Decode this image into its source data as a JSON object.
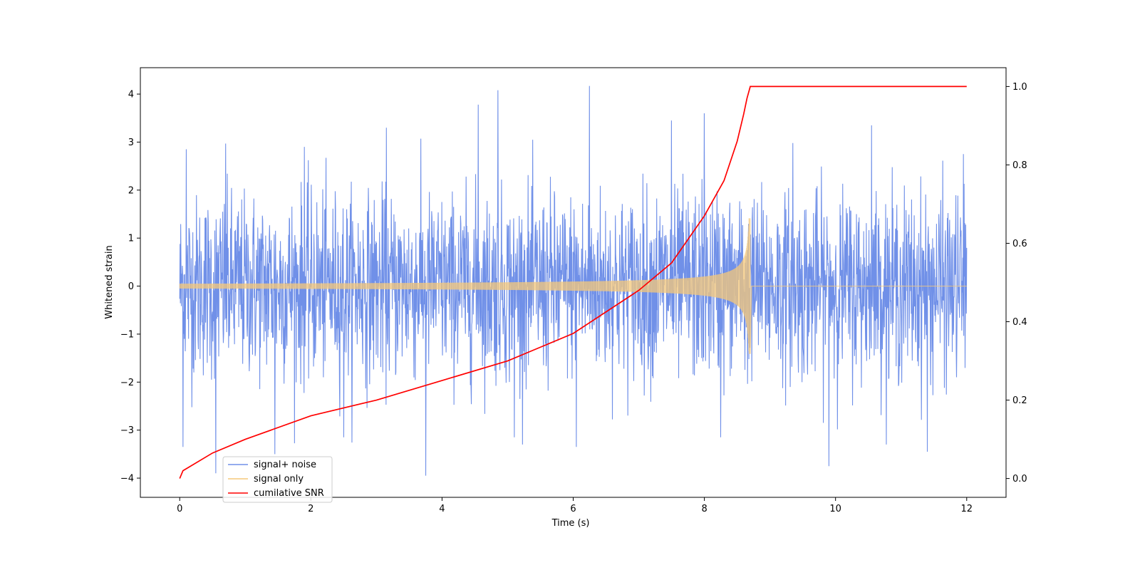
{
  "chart_data": {
    "type": "line",
    "xlabel": "Time (s)",
    "ylabel": "Whitened strain",
    "xlim": [
      -0.6,
      12.6
    ],
    "ylim": [
      -4.4,
      4.55
    ],
    "y2lim": [
      -0.048,
      1.048
    ],
    "xticks": [
      0,
      2,
      4,
      6,
      8,
      10,
      12
    ],
    "yticks": [
      -4,
      -3,
      -2,
      -1,
      0,
      1,
      2,
      3,
      4
    ],
    "y2ticks": [
      0.0,
      0.2,
      0.4,
      0.6,
      0.8,
      1.0
    ],
    "y2tick_labels": [
      "0.0",
      "0.2",
      "0.4",
      "0.6",
      "0.8",
      "1.0"
    ],
    "ytick_labels": [
      "−4",
      "−3",
      "−2",
      "−1",
      "0",
      "1",
      "2",
      "3",
      "4"
    ],
    "legend": {
      "placement": "lower-left"
    },
    "series": [
      {
        "name": "signal+ noise",
        "color": "#7090e8",
        "axis": "left",
        "t_range": [
          0,
          12
        ],
        "envelope_peaks_max": [
          [
            0.1,
            2.85
          ],
          [
            0.7,
            2.97
          ],
          [
            1.9,
            2.9
          ],
          [
            3.15,
            3.3
          ],
          [
            4.55,
            3.78
          ],
          [
            4.85,
            4.08
          ],
          [
            6.25,
            4.17
          ],
          [
            7.5,
            3.45
          ],
          [
            8.0,
            3.6
          ],
          [
            9.35,
            2.98
          ],
          [
            10.55,
            3.35
          ],
          [
            11.95,
            2.75
          ]
        ],
        "envelope_peaks_min": [
          [
            0.05,
            -3.35
          ],
          [
            0.55,
            -3.9
          ],
          [
            1.45,
            -3.5
          ],
          [
            2.5,
            -3.15
          ],
          [
            3.75,
            -3.95
          ],
          [
            5.1,
            -3.15
          ],
          [
            6.05,
            -3.35
          ],
          [
            8.25,
            -3.15
          ],
          [
            9.9,
            -3.75
          ],
          [
            11.4,
            -3.45
          ]
        ]
      },
      {
        "name": "signal only",
        "color": "#f5c87a",
        "axis": "left",
        "t_range": [
          0,
          12
        ],
        "merger_time": 8.7,
        "amplitude_start": 0.05,
        "amplitude_at_merger": 1.6,
        "post_merger_value": 0.0
      },
      {
        "name": "cumilative SNR",
        "color": "#ff0000",
        "axis": "right",
        "x": [
          0,
          0.05,
          0.5,
          1,
          2,
          3,
          4,
          5,
          6,
          7,
          7.5,
          8,
          8.3,
          8.5,
          8.6,
          8.65,
          8.7,
          8.72,
          12
        ],
        "y": [
          0.0,
          0.02,
          0.065,
          0.1,
          0.16,
          0.2,
          0.25,
          0.3,
          0.37,
          0.48,
          0.55,
          0.67,
          0.76,
          0.86,
          0.93,
          0.97,
          1.0,
          1.0,
          1.0
        ]
      }
    ]
  }
}
